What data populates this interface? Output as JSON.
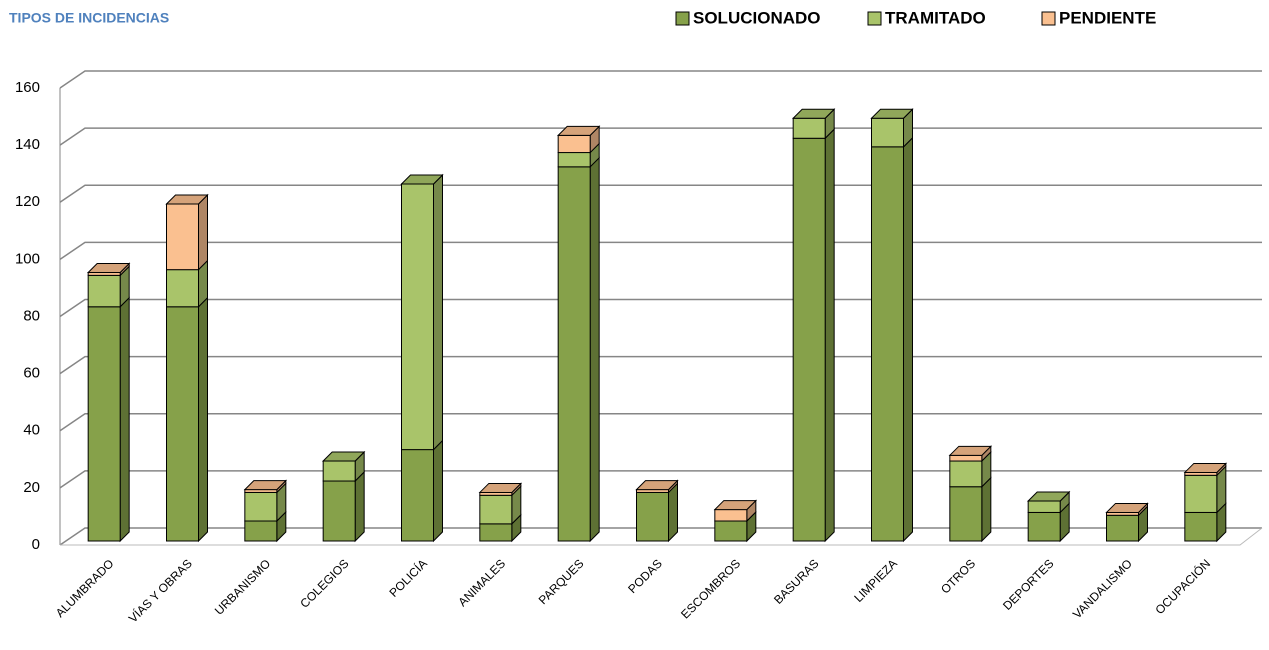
{
  "chart_data": {
    "type": "bar3d_stacked",
    "title": "TIPOS DE INCIDENCIAS",
    "categories": [
      "ALUMBRADO",
      "VÍAS Y OBRAS",
      "URBANISMO",
      "COLEGIOS",
      "POLICÍA",
      "ANIMALES",
      "PARQUES",
      "PODAS",
      "ESCOMBROS",
      "BASURAS",
      "LIMPIEZA",
      "OTROS",
      "DEPORTES",
      "VANDALISMO",
      "OCUPACIÓN"
    ],
    "series": [
      {
        "name": "SOLUCIONADO",
        "color": "#86a14a",
        "values": [
          82,
          82,
          7,
          21,
          32,
          6,
          131,
          17,
          7,
          141,
          138,
          19,
          10,
          9,
          10
        ]
      },
      {
        "name": "TRAMITADO",
        "color": "#a9c46a",
        "values": [
          11,
          13,
          10,
          7,
          93,
          10,
          5,
          0,
          0,
          7,
          10,
          9,
          4,
          0,
          13
        ]
      },
      {
        "name": "PENDIENTE",
        "color": "#fac090",
        "values": [
          1,
          23,
          1,
          0,
          0,
          1,
          6,
          1,
          4,
          0,
          0,
          2,
          0,
          1,
          1
        ]
      }
    ],
    "ylim": [
      0,
      160
    ],
    "yticks": [
      0,
      20,
      40,
      60,
      80,
      100,
      120,
      140,
      160
    ],
    "grid": true,
    "legend": "top"
  }
}
